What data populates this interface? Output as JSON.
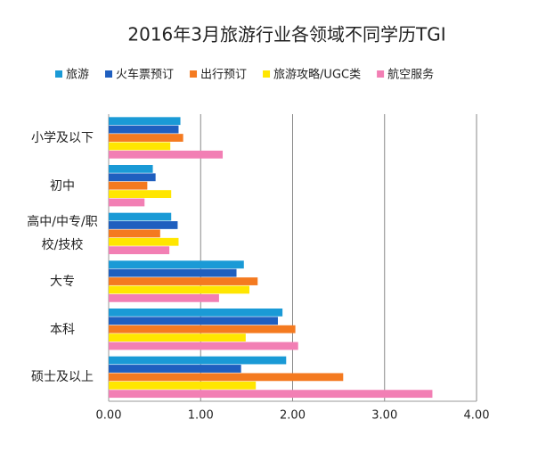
{
  "chart_data": {
    "type": "hbar",
    "title": "2016年3月旅游行业各领域不同学历TGI",
    "categories": [
      "小学及以下",
      "初中",
      "高中/中专/职校/技校",
      "大专",
      "本科",
      "硕士及以上"
    ],
    "series": [
      {
        "name": "旅游",
        "color": "#1a9ad6",
        "values": [
          0.78,
          0.48,
          0.68,
          1.47,
          1.89,
          1.93
        ]
      },
      {
        "name": "火车票预订",
        "color": "#1f5fbf",
        "values": [
          0.76,
          0.51,
          0.75,
          1.39,
          1.84,
          1.44
        ]
      },
      {
        "name": "出行预订",
        "color": "#f47a20",
        "values": [
          0.81,
          0.42,
          0.56,
          1.62,
          2.03,
          2.55
        ]
      },
      {
        "name": "旅游攻略/UGC类",
        "color": "#ffe600",
        "values": [
          0.67,
          0.68,
          0.76,
          1.53,
          1.49,
          1.6
        ]
      },
      {
        "name": "航空服务",
        "color": "#f27fb4",
        "values": [
          1.24,
          0.39,
          0.66,
          1.2,
          2.06,
          3.52
        ]
      }
    ],
    "xlim": [
      0,
      4
    ],
    "xticks": [
      {
        "value": 0,
        "label": "0.00"
      },
      {
        "value": 1,
        "label": "1.00"
      },
      {
        "value": 2,
        "label": "2.00"
      },
      {
        "value": 3,
        "label": "3.00"
      },
      {
        "value": 4,
        "label": "4.00"
      }
    ],
    "grid": true
  }
}
